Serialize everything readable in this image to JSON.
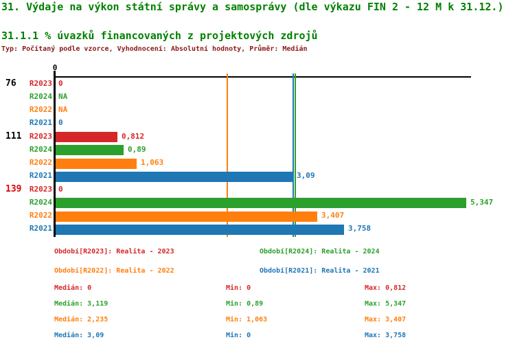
{
  "header": {
    "title": "31. Výdaje na výkon státní správy a samosprávy (dle výkazu FIN 2 - 12 M k 31.12.)",
    "subtitle": "31.1.1 % úvazků financovaných z projektových zdrojů",
    "meta": "Typ: Počítaný podle vzorce, Vyhodnocení: Absolutní hodnoty, Průměr: Medián"
  },
  "colors": {
    "title": "#008000",
    "subtitle": "#008000",
    "meta": "#8b1a1a",
    "axis": "#000000",
    "group_label_black": "#000000",
    "group_label_red": "#dd0000"
  },
  "series_colors": {
    "R2023": "#d62728",
    "R2024": "#2ca02c",
    "R2022": "#ff7f0e",
    "R2021": "#1f77b4"
  },
  "chart_data": {
    "type": "bar",
    "orientation": "horizontal",
    "title": "31.1.1 % úvazků financovaných z projektových zdrojů",
    "x_axis": {
      "tick_labels": [
        "0"
      ],
      "range": [
        0,
        5.41
      ],
      "grid": false
    },
    "groups": [
      {
        "label": "76",
        "label_color": "black",
        "rows": [
          {
            "series": "R2023",
            "value": 0,
            "display": "0"
          },
          {
            "series": "R2024",
            "value": null,
            "display": "NA"
          },
          {
            "series": "R2022",
            "value": null,
            "display": "NA"
          },
          {
            "series": "R2021",
            "value": 0,
            "display": "0"
          }
        ]
      },
      {
        "label": "111",
        "label_color": "black",
        "rows": [
          {
            "series": "R2023",
            "value": 0.812,
            "display": "0,812"
          },
          {
            "series": "R2024",
            "value": 0.89,
            "display": "0,89"
          },
          {
            "series": "R2022",
            "value": 1.063,
            "display": "1,063"
          },
          {
            "series": "R2021",
            "value": 3.09,
            "display": "3,09"
          }
        ]
      },
      {
        "label": "139",
        "label_color": "red",
        "rows": [
          {
            "series": "R2023",
            "value": 0,
            "display": "0"
          },
          {
            "series": "R2024",
            "value": 5.347,
            "display": "5,347"
          },
          {
            "series": "R2022",
            "value": 3.407,
            "display": "3,407"
          },
          {
            "series": "R2021",
            "value": 3.758,
            "display": "3,758"
          }
        ]
      }
    ],
    "median_lines": [
      {
        "series": "R2022",
        "value": 2.235
      },
      {
        "series": "R2021",
        "value": 3.09
      },
      {
        "series": "R2024",
        "value": 3.119
      }
    ],
    "legend_position": "bottom"
  },
  "legend": {
    "items": [
      {
        "series": "R2023",
        "label": "Období[R2023]: Realita - 2023"
      },
      {
        "series": "R2024",
        "label": "Období[R2024]: Realita - 2024"
      },
      {
        "series": "R2022",
        "label": "Období[R2022]: Realita - 2022"
      },
      {
        "series": "R2021",
        "label": "Období[R2021]: Realita - 2021"
      }
    ]
  },
  "stats": {
    "rows": [
      {
        "series": "R2023",
        "median": "Medián: 0",
        "min": "Min: 0",
        "max": "Max: 0,812"
      },
      {
        "series": "R2024",
        "median": "Medián: 3,119",
        "min": "Min: 0,89",
        "max": "Max: 5,347"
      },
      {
        "series": "R2022",
        "median": "Medián: 2,235",
        "min": "Min: 1,063",
        "max": "Max: 3,407"
      },
      {
        "series": "R2021",
        "median": "Medián: 3,09",
        "min": "Min: 0",
        "max": "Max: 3,758"
      }
    ]
  }
}
